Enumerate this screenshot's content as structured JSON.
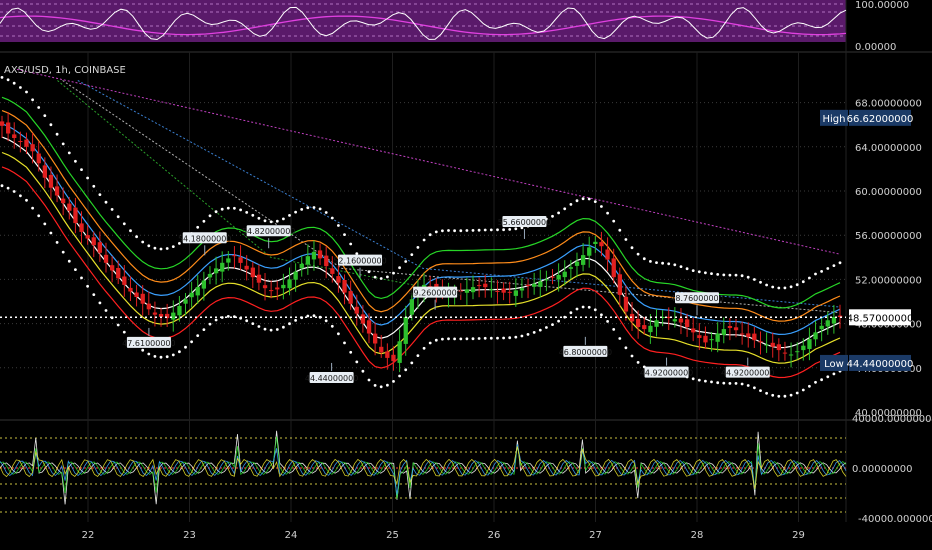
{
  "chart_data": {
    "type": "candlestick",
    "symbol_label": "AXS/USD, 1h, COINBASE",
    "x_ticks": [
      "22",
      "23",
      "24",
      "25",
      "26",
      "27",
      "28",
      "29"
    ],
    "price_axis": {
      "ticks": [
        "68.00000000",
        "64.00000000",
        "60.00000000",
        "56.00000000",
        "52.00000000",
        "48.00000000",
        "44.00000000",
        "40.00000000"
      ],
      "ylim": [
        40,
        70
      ]
    },
    "top_panel": {
      "ticks": [
        "100.00000",
        "0.00000"
      ],
      "ylim": [
        0,
        100
      ]
    },
    "bottom_panel": {
      "ticks": [
        "40000.00000000",
        "0.00000000",
        "-40000.00000000"
      ],
      "ylim": [
        -40000,
        40000
      ]
    },
    "markers": {
      "high": {
        "label": "High",
        "value": "66.62000000"
      },
      "low": {
        "label": "Low",
        "value": "44.44000000"
      },
      "last": {
        "value": "48.57000000"
      }
    },
    "annotations": [
      {
        "text": "47.61000000",
        "x": 22.6,
        "y": 47.61
      },
      {
        "text": "54.18000000",
        "x": 23.15,
        "y": 54.18
      },
      {
        "text": "54.82000000",
        "x": 23.78,
        "y": 54.82
      },
      {
        "text": "44.44000000",
        "x": 24.4,
        "y": 44.44
      },
      {
        "text": "52.16000000",
        "x": 24.68,
        "y": 52.16
      },
      {
        "text": "49.26000000",
        "x": 25.42,
        "y": 49.26
      },
      {
        "text": "55.66000000",
        "x": 26.3,
        "y": 55.66
      },
      {
        "text": "46.80000000",
        "x": 26.9,
        "y": 46.8
      },
      {
        "text": "44.92000000",
        "x": 27.7,
        "y": 44.92
      },
      {
        "text": "48.76000000",
        "x": 28.0,
        "y": 48.76
      },
      {
        "text": "44.92000000",
        "x": 28.5,
        "y": 44.92
      }
    ],
    "close": [
      65.9,
      65.2,
      64.8,
      64.5,
      64.0,
      63.6,
      62.5,
      61.2,
      60.3,
      59.6,
      58.9,
      58.2,
      57.1,
      56.3,
      55.7,
      55.1,
      54.4,
      53.5,
      52.8,
      52.1,
      51.5,
      50.9,
      50.4,
      49.8,
      49.3,
      48.8,
      48.6,
      48.5,
      49.0,
      49.6,
      50.2,
      50.8,
      51.3,
      51.9,
      52.5,
      53.0,
      53.5,
      53.9,
      54.1,
      53.5,
      52.9,
      52.2,
      51.7,
      51.2,
      51.0,
      51.1,
      51.5,
      52.0,
      52.7,
      53.4,
      54.1,
      54.5,
      53.9,
      53.2,
      52.5,
      51.7,
      50.8,
      49.8,
      48.9,
      48.0,
      47.1,
      46.2,
      45.4,
      44.9,
      44.6,
      46.4,
      48.6,
      50.2,
      51.1,
      51.5,
      51.3,
      51.0,
      50.8,
      50.6,
      50.7,
      50.9,
      51.1,
      51.3,
      51.4,
      51.3,
      51.1,
      50.9,
      50.8,
      50.8,
      51.0,
      51.2,
      51.4,
      51.6,
      51.8,
      52.0,
      52.2,
      52.4,
      52.7,
      53.1,
      53.6,
      54.2,
      54.9,
      55.4,
      55.0,
      53.8,
      52.2,
      50.6,
      49.1,
      48.2,
      47.7,
      47.5,
      47.8,
      48.3,
      48.6,
      48.5,
      48.4,
      48.1,
      47.7,
      47.2,
      46.7,
      46.3,
      46.6,
      47.1,
      47.5,
      47.6,
      47.4,
      47.1,
      46.8,
      46.5,
      46.3,
      46.1,
      45.9,
      45.6,
      45.3,
      45.2,
      45.5,
      46.0,
      46.6,
      47.2,
      47.8,
      48.3,
      48.6,
      48.6
    ],
    "bands": {
      "dot_upper": {
        "offset": 5.4,
        "color": "#ffffff"
      },
      "green": {
        "offset": 3.6,
        "color": "#27d627"
      },
      "orange": {
        "offset": 2.4,
        "color": "#ff8c1a"
      },
      "blue": {
        "offset": 1.2,
        "color": "#3aa0ff"
      },
      "white": {
        "offset": 0.0,
        "color": "#ffffff"
      },
      "yellow": {
        "offset": -1.4,
        "color": "#e6e02a"
      },
      "red": {
        "offset": -2.7,
        "color": "#ff2020"
      },
      "dot_lower": {
        "offset": -4.4,
        "color": "#ffffff"
      }
    },
    "trend_lines": [
      {
        "color": "#c040c0",
        "points": [
          [
            21.3,
            71.0
          ],
          [
            29.4,
            54.3
          ]
        ]
      },
      {
        "color": "#3a7fd0",
        "points": [
          [
            21.9,
            70.0
          ],
          [
            25.3,
            53.0
          ],
          [
            29.4,
            49.5
          ]
        ]
      },
      {
        "color": "#b0b0b0",
        "points": [
          [
            21.75,
            70.0
          ],
          [
            24.5,
            53.0
          ],
          [
            29.4,
            49.0
          ]
        ]
      },
      {
        "color": "#2aa02a",
        "points": [
          [
            21.7,
            70.0
          ],
          [
            23.8,
            54.0
          ],
          [
            25.2,
            51.5
          ]
        ]
      }
    ],
    "colors": {
      "up": "#2dc02d",
      "down": "#e02020",
      "purple_zone": "#5a1a6a",
      "high_tag": "#1b3a66",
      "grid": "#3a3a3a"
    }
  }
}
